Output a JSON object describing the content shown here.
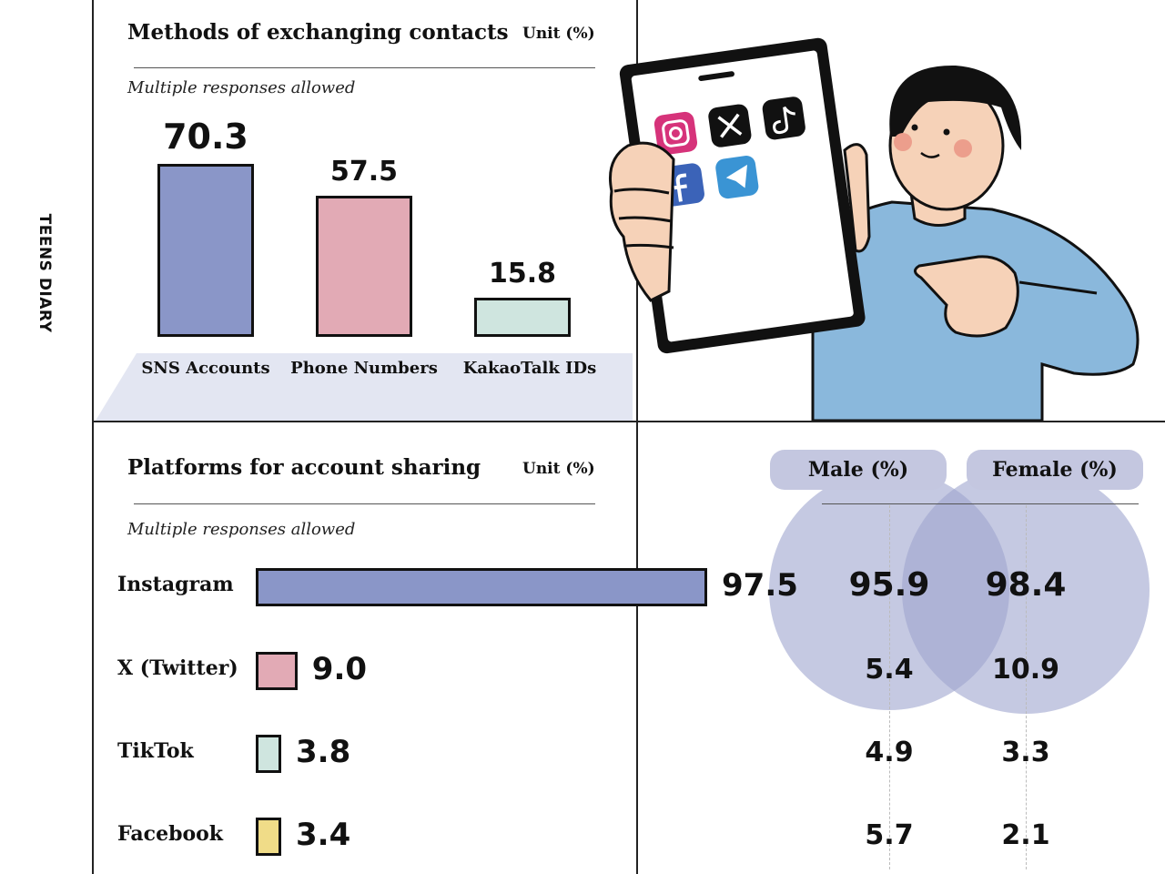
{
  "side_label": "TEENS DIARY",
  "top_chart": {
    "title": "Methods of exchanging contacts",
    "unit": "Unit (%)",
    "note": "Multiple responses allowed"
  },
  "bottom_chart": {
    "title": "Platforms for account sharing",
    "unit": "Unit (%)",
    "note": "Multiple responses allowed",
    "male_header": "Male (%)",
    "female_header": "Female (%)"
  },
  "illustration": {
    "apps": [
      "instagram-icon",
      "x-icon",
      "tiktok-icon",
      "facebook-icon",
      "telegram-icon"
    ]
  },
  "colors": {
    "blue": "#8a96c8",
    "pink": "#e2aab5",
    "mint": "#cfe5df",
    "yellow": "#f0dc88",
    "venn": "#9ea5cf"
  },
  "chart_data": [
    {
      "type": "bar",
      "orientation": "vertical",
      "title": "Methods of exchanging contacts",
      "unit": "Unit (%)",
      "categories": [
        "SNS Accounts",
        "Phone Numbers",
        "KakaoTalk IDs"
      ],
      "values": [
        70.3,
        57.5,
        15.8
      ],
      "labels": [
        "70.3",
        "57.5",
        "15.8"
      ]
    },
    {
      "type": "bar",
      "orientation": "horizontal",
      "title": "Platforms for account sharing",
      "unit": "Unit (%)",
      "categories": [
        "Instagram",
        "X (Twitter)",
        "TikTok",
        "Facebook"
      ],
      "values": [
        97.5,
        9.0,
        3.8,
        3.4
      ],
      "labels": [
        "97.5",
        "9.0",
        "3.8",
        "3.4"
      ],
      "series": [
        {
          "name": "Male (%)",
          "values": [
            95.9,
            5.4,
            4.9,
            5.7
          ],
          "labels": [
            "95.9",
            "5.4",
            "4.9",
            "5.7"
          ]
        },
        {
          "name": "Female (%)",
          "values": [
            98.4,
            10.9,
            3.3,
            2.1
          ],
          "labels": [
            "98.4",
            "10.9",
            "3.3",
            "2.1"
          ]
        }
      ]
    }
  ]
}
